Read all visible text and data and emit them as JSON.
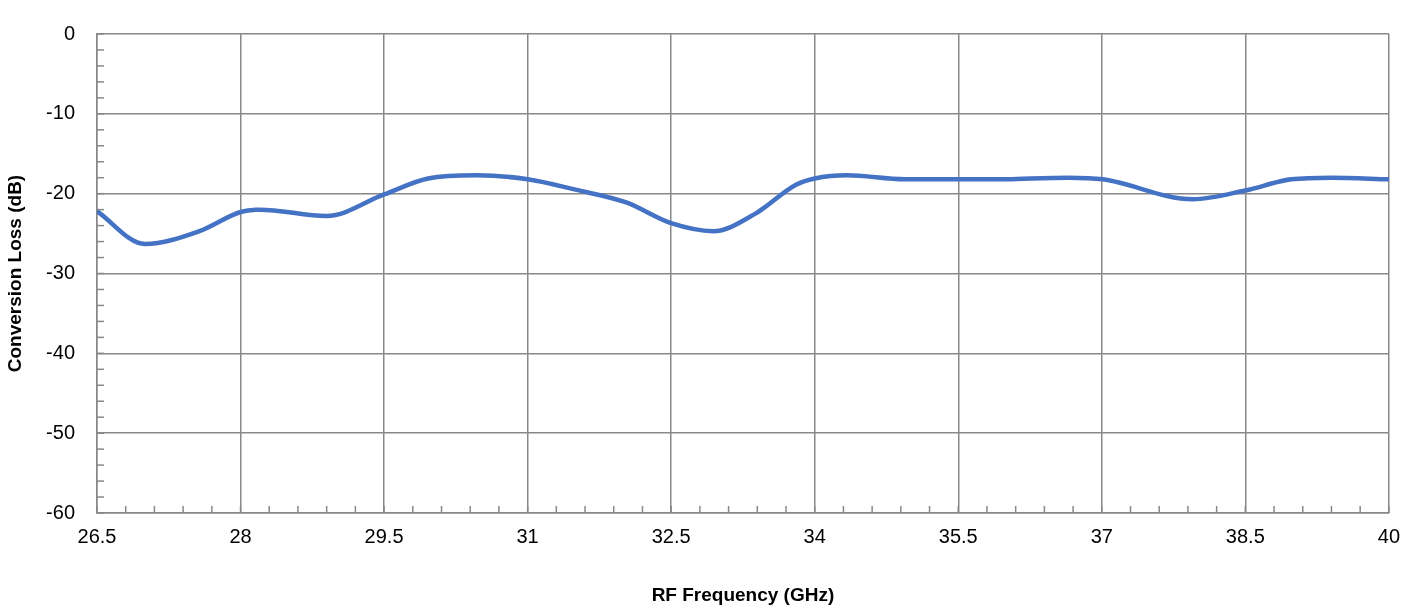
{
  "chart_data": {
    "type": "line",
    "xlabel": "RF Frequency (GHz)",
    "ylabel": "Conversion Loss (dB)",
    "grid": true,
    "legend": false,
    "marker": "none",
    "line_style": "solid",
    "x": [
      26.5,
      27.0,
      27.57,
      28.0,
      28.2,
      28.9,
      29.5,
      29.96,
      30.47,
      31.0,
      31.5,
      32.03,
      32.5,
      32.94,
      33.38,
      33.8,
      34.0,
      34.34,
      34.94,
      35.87,
      36.65,
      37.01,
      37.95,
      38.5,
      38.98,
      39.4,
      40
    ],
    "series": [
      {
        "color": "#4472c4",
        "values": [
          -22.2,
          -26.3,
          -24.7,
          -22.3,
          -22.0,
          -22.8,
          -20.1,
          -18.1,
          -17.7,
          -18.2,
          -19.5,
          -21.1,
          -23.7,
          -24.7,
          -22.5,
          -18.9,
          -18.1,
          -17.7,
          -18.2,
          -18.2,
          -18.0,
          -18.2,
          -20.7,
          -19.6,
          -18.2,
          -18.0,
          -18.2
        ]
      }
    ],
    "xlim": [
      26.5,
      40
    ],
    "xticks": [
      26.5,
      {
        "value": 26.8,
        "label": null
      },
      {
        "value": 27.1,
        "label": null
      },
      {
        "value": 27.4,
        "label": null
      },
      {
        "value": 27.7,
        "label": null
      },
      28,
      {
        "value": 28.3,
        "label": null
      },
      {
        "value": 28.6,
        "label": null
      },
      {
        "value": 28.9,
        "label": null
      },
      {
        "value": 29.2,
        "label": null
      },
      29.5,
      {
        "value": 29.8,
        "label": null
      },
      {
        "value": 30.1,
        "label": null
      },
      {
        "value": 30.4,
        "label": null
      },
      {
        "value": 30.7,
        "label": null
      },
      31,
      {
        "value": 31.3,
        "label": null
      },
      {
        "value": 31.6,
        "label": null
      },
      {
        "value": 31.9,
        "label": null
      },
      {
        "value": 32.2,
        "label": null
      },
      32.5,
      {
        "value": 32.8,
        "label": null
      },
      {
        "value": 33.1,
        "label": null
      },
      {
        "value": 33.4,
        "label": null
      },
      {
        "value": 33.7,
        "label": null
      },
      34,
      {
        "value": 34.3,
        "label": null
      },
      {
        "value": 34.6,
        "label": null
      },
      {
        "value": 34.9,
        "label": null
      },
      {
        "value": 35.2,
        "label": null
      },
      35.5,
      {
        "value": 35.8,
        "label": null
      },
      {
        "value": 36.1,
        "label": null
      },
      {
        "value": 36.4,
        "label": null
      },
      {
        "value": 36.7,
        "label": null
      },
      37,
      {
        "value": 37.3,
        "label": null
      },
      {
        "value": 37.6,
        "label": null
      },
      {
        "value": 37.9,
        "label": null
      },
      {
        "value": 38.2,
        "label": null
      },
      38.5,
      {
        "value": 38.8,
        "label": null
      },
      {
        "value": 39.1,
        "label": null
      },
      {
        "value": 39.4,
        "label": null
      },
      {
        "value": 39.7,
        "label": null
      },
      40
    ],
    "ylim": [
      -60,
      0
    ],
    "yticks": [
      -60,
      {
        "value": -58,
        "label": null
      },
      {
        "value": -56,
        "label": null
      },
      {
        "value": -54,
        "label": null
      },
      {
        "value": -52,
        "label": null
      },
      -50,
      {
        "value": -48,
        "label": null
      },
      {
        "value": -46,
        "label": null
      },
      {
        "value": -44,
        "label": null
      },
      {
        "value": -42,
        "label": null
      },
      -40,
      {
        "value": -38,
        "label": null
      },
      {
        "value": -36,
        "label": null
      },
      {
        "value": -34,
        "label": null
      },
      {
        "value": -32,
        "label": null
      },
      -30,
      {
        "value": -28,
        "label": null
      },
      {
        "value": -26,
        "label": null
      },
      {
        "value": -24,
        "label": null
      },
      {
        "value": -22,
        "label": null
      },
      -20,
      {
        "value": -18,
        "label": null
      },
      {
        "value": -16,
        "label": null
      },
      {
        "value": -14,
        "label": null
      },
      {
        "value": -12,
        "label": null
      },
      -10,
      {
        "value": -8,
        "label": null
      },
      {
        "value": -6,
        "label": null
      },
      {
        "value": -4,
        "label": null
      },
      {
        "value": -2,
        "label": null
      },
      0
    ]
  }
}
